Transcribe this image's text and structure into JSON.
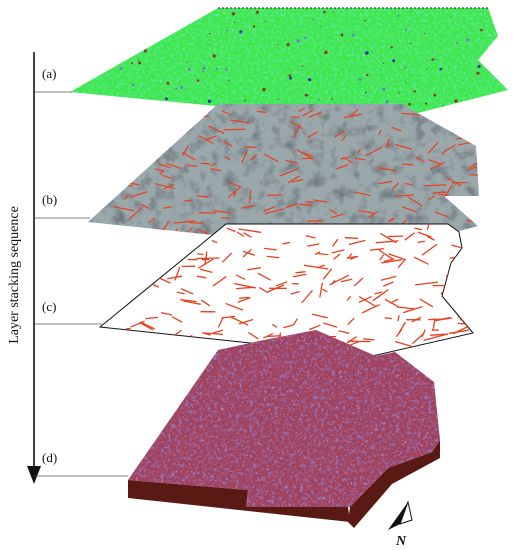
{
  "figure": {
    "axis_title": "Layer stacking sequence",
    "layer_labels": [
      "(a)",
      "(b)",
      "(c)",
      "(d)"
    ],
    "north_label": "N",
    "colors": {
      "layer_a_base": "#3fe84a",
      "layer_a_noise": "#2ec9b6",
      "layer_b_base": "#9aa7ab",
      "layer_b_dark": "#2d3438",
      "lineament": "#e8401c",
      "layer_c_fill": "#ffffff",
      "layer_d_base": "#a0425e",
      "layer_d_blue": "#3a3ad0",
      "layer_d_side": "#5a1a14",
      "stroke": "#111111"
    }
  }
}
